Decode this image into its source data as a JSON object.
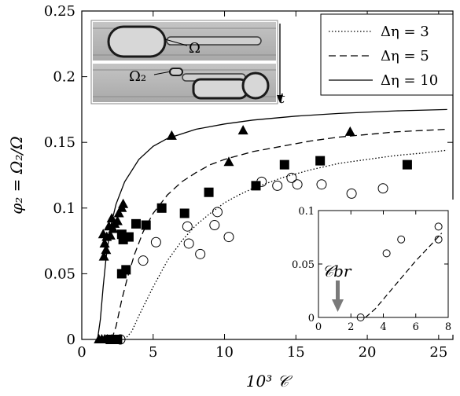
{
  "chart_data": {
    "type": "scatter",
    "xlabel": "10³ 𝒞",
    "ylabel": "φ₂ = Ω₂/Ω",
    "xlim": [
      0,
      26
    ],
    "ylim": [
      0,
      0.25
    ],
    "x_ticks": [
      "0",
      "5",
      "10",
      "15",
      "20",
      "25"
    ],
    "y_ticks": [
      "0",
      "0.05",
      "0.1",
      "0.15",
      "0.2",
      "0.25"
    ],
    "legend": {
      "placement": "top-right",
      "entries": [
        {
          "label": "Δη = 3",
          "style": "dotted"
        },
        {
          "label": "Δη = 5",
          "style": "dashed"
        },
        {
          "label": "Δη = 10",
          "style": "solid"
        }
      ]
    },
    "series": [
      {
        "marker": "triangle",
        "points": [
          [
            1.2,
            0.0
          ],
          [
            1.4,
            0.0
          ],
          [
            1.6,
            0.0
          ],
          [
            1.8,
            0.0
          ],
          [
            2.1,
            0.0
          ],
          [
            1.55,
            0.063
          ],
          [
            1.7,
            0.068
          ],
          [
            1.6,
            0.073
          ],
          [
            1.75,
            0.078
          ],
          [
            1.5,
            0.08
          ],
          [
            2.0,
            0.079
          ],
          [
            2.2,
            0.084
          ],
          [
            1.9,
            0.086
          ],
          [
            2.3,
            0.088
          ],
          [
            2.5,
            0.09
          ],
          [
            2.1,
            0.092
          ],
          [
            2.6,
            0.096
          ],
          [
            2.8,
            0.1
          ],
          [
            2.9,
            0.103
          ],
          [
            6.3,
            0.155
          ],
          [
            10.3,
            0.135
          ],
          [
            11.3,
            0.159
          ],
          [
            18.8,
            0.158
          ]
        ]
      },
      {
        "marker": "square",
        "points": [
          [
            2.0,
            0.0
          ],
          [
            2.2,
            0.0
          ],
          [
            2.5,
            0.0
          ],
          [
            2.8,
            0.05
          ],
          [
            3.1,
            0.053
          ],
          [
            2.9,
            0.076
          ],
          [
            3.3,
            0.078
          ],
          [
            2.8,
            0.08
          ],
          [
            3.8,
            0.088
          ],
          [
            4.5,
            0.087
          ],
          [
            5.6,
            0.1
          ],
          [
            7.2,
            0.096
          ],
          [
            8.9,
            0.112
          ],
          [
            12.2,
            0.117
          ],
          [
            14.2,
            0.133
          ],
          [
            16.7,
            0.136
          ],
          [
            22.8,
            0.133
          ]
        ]
      },
      {
        "marker": "circle",
        "points": [
          [
            2.7,
            0.0
          ],
          [
            4.3,
            0.06
          ],
          [
            5.2,
            0.074
          ],
          [
            7.5,
            0.073
          ],
          [
            7.4,
            0.086
          ],
          [
            8.3,
            0.065
          ],
          [
            9.3,
            0.087
          ],
          [
            9.5,
            0.097
          ],
          [
            10.3,
            0.078
          ],
          [
            12.6,
            0.12
          ],
          [
            13.7,
            0.117
          ],
          [
            14.7,
            0.123
          ],
          [
            15.1,
            0.118
          ],
          [
            16.8,
            0.118
          ],
          [
            18.9,
            0.111
          ],
          [
            21.1,
            0.115
          ]
        ]
      }
    ],
    "curves": [
      {
        "style": "dotted",
        "points": [
          [
            3.0,
            0.0
          ],
          [
            3.5,
            0.006
          ],
          [
            4.0,
            0.018
          ],
          [
            5.0,
            0.04
          ],
          [
            6.0,
            0.06
          ],
          [
            7.0,
            0.075
          ],
          [
            8.0,
            0.087
          ],
          [
            9.0,
            0.096
          ],
          [
            10.0,
            0.104
          ],
          [
            11.0,
            0.11
          ],
          [
            12.0,
            0.115
          ],
          [
            14.0,
            0.123
          ],
          [
            16.0,
            0.129
          ],
          [
            18.0,
            0.134
          ],
          [
            20.0,
            0.137
          ],
          [
            22.0,
            0.14
          ],
          [
            24.0,
            0.142
          ],
          [
            25.6,
            0.144
          ]
        ]
      },
      {
        "style": "dashed",
        "points": [
          [
            2.1,
            0.0
          ],
          [
            2.4,
            0.01
          ],
          [
            2.8,
            0.03
          ],
          [
            3.2,
            0.047
          ],
          [
            3.7,
            0.065
          ],
          [
            4.3,
            0.082
          ],
          [
            5.0,
            0.096
          ],
          [
            6.0,
            0.11
          ],
          [
            7.0,
            0.12
          ],
          [
            8.0,
            0.127
          ],
          [
            9.0,
            0.133
          ],
          [
            10.0,
            0.137
          ],
          [
            12.0,
            0.143
          ],
          [
            14.0,
            0.147
          ],
          [
            16.0,
            0.151
          ],
          [
            18.0,
            0.154
          ],
          [
            20.0,
            0.156
          ],
          [
            22.0,
            0.158
          ],
          [
            25.6,
            0.16
          ]
        ]
      },
      {
        "style": "solid",
        "points": [
          [
            1.1,
            0.0
          ],
          [
            1.3,
            0.015
          ],
          [
            1.5,
            0.04
          ],
          [
            1.7,
            0.062
          ],
          [
            2.0,
            0.085
          ],
          [
            2.4,
            0.103
          ],
          [
            3.0,
            0.12
          ],
          [
            4.0,
            0.137
          ],
          [
            5.0,
            0.147
          ],
          [
            6.0,
            0.153
          ],
          [
            8.0,
            0.16
          ],
          [
            10.0,
            0.164
          ],
          [
            12.0,
            0.167
          ],
          [
            15.0,
            0.17
          ],
          [
            18.0,
            0.172
          ],
          [
            22.0,
            0.174
          ],
          [
            25.6,
            0.175
          ]
        ]
      }
    ],
    "inset": {
      "placement": "bottom-right",
      "xlim": [
        0,
        8
      ],
      "ylim": [
        0,
        0.1
      ],
      "x_ticks": [
        "0",
        "2",
        "4",
        "6",
        "8"
      ],
      "y_ticks": [
        "0",
        "0.05",
        "0.1"
      ],
      "annotation": "𝒞br",
      "points": [
        [
          2.6,
          0.0
        ],
        [
          4.2,
          0.06
        ],
        [
          5.1,
          0.073
        ],
        [
          7.4,
          0.073
        ],
        [
          7.4,
          0.085
        ]
      ],
      "curve": [
        [
          2.9,
          0.0
        ],
        [
          3.5,
          0.008
        ],
        [
          4.0,
          0.017
        ],
        [
          5.0,
          0.035
        ],
        [
          6.0,
          0.053
        ],
        [
          7.0,
          0.069
        ],
        [
          7.6,
          0.079
        ]
      ]
    },
    "photo_labels": {
      "top": "Ω",
      "bottom": "Ω₂",
      "arrow": "t"
    }
  }
}
